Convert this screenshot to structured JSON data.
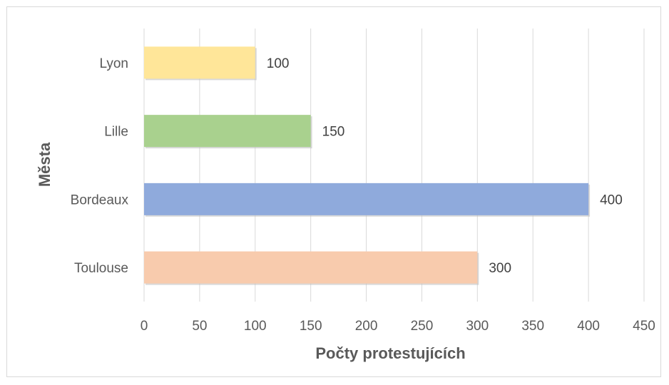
{
  "chart_data": {
    "type": "bar",
    "orientation": "horizontal",
    "categories": [
      "Lyon",
      "Lille",
      "Bordeaux",
      "Toulouse"
    ],
    "values": [
      100,
      150,
      400,
      300
    ],
    "colors": [
      "#ffe699",
      "#a9d18e",
      "#8faadc",
      "#f8cbad"
    ],
    "xlabel": "Počty protestujících",
    "ylabel": "Města",
    "xlim": [
      0,
      450
    ],
    "xticks": [
      "0",
      "50",
      "100",
      "150",
      "200",
      "250",
      "300",
      "350",
      "400",
      "450"
    ],
    "data_labels": [
      "100",
      "150",
      "400",
      "300"
    ],
    "grid": "vertical",
    "legend": "none"
  }
}
